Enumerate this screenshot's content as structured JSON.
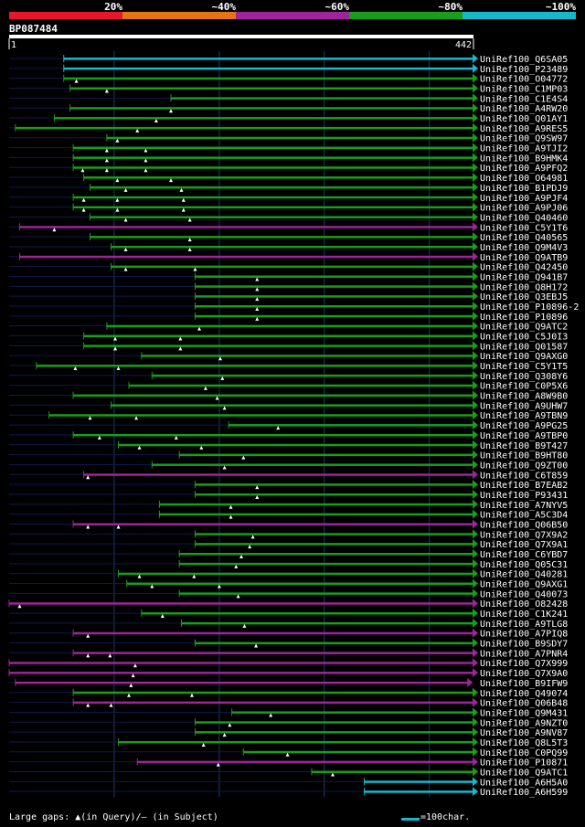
{
  "query": {
    "id": "BP087484",
    "start": "1",
    "end": "442",
    "length": 442
  },
  "legend_scale": [
    "20%",
    "~40%",
    "~60%",
    "~80%",
    "~100%"
  ],
  "colors": {
    "c20": "#e8162a",
    "c40": "#e8740f",
    "c60": "#a0239b",
    "c80": "#169f18",
    "c100": "#16b8cc",
    "dim": "#0e1850",
    "grid": "#1a3a6a"
  },
  "footer": {
    "gaps_text": "Large gaps: ▲(in Query)/– (in Subject)",
    "scale_text": "=100char."
  },
  "hits": [
    {
      "name": "UniRef100_Q6SA05",
      "s": 52,
      "e": 442,
      "c": "c100",
      "g": []
    },
    {
      "name": "UniRef100_P23489",
      "s": 52,
      "e": 442,
      "c": "c100",
      "g": []
    },
    {
      "name": "UniRef100_O04772",
      "s": 52,
      "e": 442,
      "c": "c80",
      "g": [
        64
      ]
    },
    {
      "name": "UniRef100_C1MP03",
      "s": 58,
      "e": 442,
      "c": "c80",
      "g": [
        93
      ]
    },
    {
      "name": "UniRef100_C1E4S4",
      "s": 154,
      "e": 442,
      "c": "c80",
      "g": []
    },
    {
      "name": "UniRef100_A4RW20",
      "s": 58,
      "e": 442,
      "c": "c80",
      "g": [
        154
      ]
    },
    {
      "name": "UniRef100_Q01AY1",
      "s": 43,
      "e": 442,
      "c": "c80",
      "g": [
        140
      ]
    },
    {
      "name": "UniRef100_A9RES5",
      "s": 6,
      "e": 442,
      "c": "c80",
      "g": [
        122
      ]
    },
    {
      "name": "UniRef100_Q9SW97",
      "s": 93,
      "e": 442,
      "c": "c80",
      "g": [
        103
      ]
    },
    {
      "name": "UniRef100_A9TJI2",
      "s": 61,
      "e": 442,
      "c": "c80",
      "g": [
        93,
        130
      ]
    },
    {
      "name": "UniRef100_B9HMK4",
      "s": 61,
      "e": 442,
      "c": "c80",
      "g": [
        93,
        130
      ]
    },
    {
      "name": "UniRef100_A9PFQ2",
      "s": 61,
      "e": 442,
      "c": "c80",
      "g": [
        70,
        93,
        130
      ]
    },
    {
      "name": "UniRef100_O64981",
      "s": 71,
      "e": 442,
      "c": "c80",
      "g": [
        103,
        154
      ]
    },
    {
      "name": "UniRef100_B1PDJ9",
      "s": 77,
      "e": 442,
      "c": "c80",
      "g": [
        111,
        164
      ]
    },
    {
      "name": "UniRef100_A9PJF4",
      "s": 61,
      "e": 442,
      "c": "c80",
      "g": [
        71,
        103,
        166
      ]
    },
    {
      "name": "UniRef100_A9PJ06",
      "s": 61,
      "e": 442,
      "c": "c80",
      "g": [
        71,
        103,
        166
      ]
    },
    {
      "name": "UniRef100_Q40460",
      "s": 77,
      "e": 442,
      "c": "c80",
      "g": [
        111,
        172
      ]
    },
    {
      "name": "UniRef100_C5Y1T6",
      "s": 10,
      "e": 442,
      "c": "c60",
      "g": [
        43
      ]
    },
    {
      "name": "UniRef100_Q40565",
      "s": 77,
      "e": 442,
      "c": "c80",
      "g": [
        172
      ]
    },
    {
      "name": "UniRef100_Q9M4V3",
      "s": 97,
      "e": 442,
      "c": "c80",
      "g": [
        111,
        172
      ]
    },
    {
      "name": "UniRef100_Q9ATB9",
      "s": 10,
      "e": 442,
      "c": "c60",
      "g": []
    },
    {
      "name": "UniRef100_Q42450",
      "s": 97,
      "e": 442,
      "c": "c80",
      "g": [
        111,
        177
      ]
    },
    {
      "name": "UniRef100_Q941B7",
      "s": 177,
      "e": 442,
      "c": "c80",
      "g": [
        236
      ]
    },
    {
      "name": "UniRef100_Q8H172",
      "s": 177,
      "e": 442,
      "c": "c80",
      "g": [
        236
      ]
    },
    {
      "name": "UniRef100_Q3EBJ5",
      "s": 177,
      "e": 442,
      "c": "c80",
      "g": [
        236
      ]
    },
    {
      "name": "UniRef100_P10896-2",
      "s": 177,
      "e": 442,
      "c": "c80",
      "g": [
        236
      ]
    },
    {
      "name": "UniRef100_P10896",
      "s": 177,
      "e": 442,
      "c": "c80",
      "g": [
        236
      ]
    },
    {
      "name": "UniRef100_Q9ATC2",
      "s": 93,
      "e": 442,
      "c": "c80",
      "g": [
        181
      ]
    },
    {
      "name": "UniRef100_C5J0I3",
      "s": 71,
      "e": 442,
      "c": "c80",
      "g": [
        101,
        163
      ]
    },
    {
      "name": "UniRef100_Q01587",
      "s": 71,
      "e": 442,
      "c": "c80",
      "g": [
        101,
        163
      ]
    },
    {
      "name": "UniRef100_Q9AXG0",
      "s": 126,
      "e": 442,
      "c": "c80",
      "g": [
        201
      ]
    },
    {
      "name": "UniRef100_C5Y1T5",
      "s": 26,
      "e": 442,
      "c": "c80",
      "g": [
        63,
        104
      ]
    },
    {
      "name": "UniRef100_Q308Y6",
      "s": 136,
      "e": 442,
      "c": "c80",
      "g": [
        203
      ]
    },
    {
      "name": "UniRef100_C0P5X6",
      "s": 114,
      "e": 442,
      "c": "c80",
      "g": [
        187
      ]
    },
    {
      "name": "UniRef100_A8W9B0",
      "s": 61,
      "e": 442,
      "c": "c80",
      "g": [
        198
      ]
    },
    {
      "name": "UniRef100_A9UHW7",
      "s": 97,
      "e": 442,
      "c": "c80",
      "g": [
        205
      ]
    },
    {
      "name": "UniRef100_A9TBN9",
      "s": 38,
      "e": 442,
      "c": "c80",
      "g": [
        77,
        121
      ]
    },
    {
      "name": "UniRef100_A9PG25",
      "s": 209,
      "e": 442,
      "c": "c80",
      "g": [
        256
      ]
    },
    {
      "name": "UniRef100_A9TBP0",
      "s": 61,
      "e": 442,
      "c": "c80",
      "g": [
        86,
        159
      ]
    },
    {
      "name": "UniRef100_B9T427",
      "s": 104,
      "e": 442,
      "c": "c80",
      "g": [
        124,
        183
      ]
    },
    {
      "name": "UniRef100_B9HT80",
      "s": 162,
      "e": 442,
      "c": "c80",
      "g": [
        223
      ]
    },
    {
      "name": "UniRef100_Q9ZT00",
      "s": 136,
      "e": 442,
      "c": "c80",
      "g": [
        205
      ]
    },
    {
      "name": "UniRef100_C6T859",
      "s": 71,
      "e": 442,
      "c": "c60",
      "g": [
        75
      ]
    },
    {
      "name": "UniRef100_B7EAB2",
      "s": 177,
      "e": 442,
      "c": "c80",
      "g": [
        236
      ]
    },
    {
      "name": "UniRef100_P93431",
      "s": 177,
      "e": 442,
      "c": "c80",
      "g": [
        236
      ]
    },
    {
      "name": "UniRef100_A7NYV5",
      "s": 143,
      "e": 442,
      "c": "c80",
      "g": [
        211
      ]
    },
    {
      "name": "UniRef100_A5C3D4",
      "s": 143,
      "e": 442,
      "c": "c80",
      "g": [
        211
      ]
    },
    {
      "name": "UniRef100_Q06B50",
      "s": 61,
      "e": 442,
      "c": "c60",
      "g": [
        75,
        104
      ]
    },
    {
      "name": "UniRef100_Q7X9A2",
      "s": 177,
      "e": 442,
      "c": "c80",
      "g": [
        232
      ]
    },
    {
      "name": "UniRef100_Q7X9A1",
      "s": 177,
      "e": 442,
      "c": "c80",
      "g": [
        229
      ]
    },
    {
      "name": "UniRef100_C6YBD7",
      "s": 162,
      "e": 442,
      "c": "c80",
      "g": [
        221
      ]
    },
    {
      "name": "UniRef100_Q05C31",
      "s": 162,
      "e": 442,
      "c": "c80",
      "g": [
        216
      ]
    },
    {
      "name": "UniRef100_Q40281",
      "s": 104,
      "e": 442,
      "c": "c80",
      "g": [
        124,
        176
      ]
    },
    {
      "name": "UniRef100_Q9AXG1",
      "s": 112,
      "e": 442,
      "c": "c80",
      "g": [
        136,
        200
      ]
    },
    {
      "name": "UniRef100_Q40073",
      "s": 162,
      "e": 442,
      "c": "c80",
      "g": [
        218
      ]
    },
    {
      "name": "UniRef100_O82428",
      "s": 0,
      "e": 442,
      "c": "c60",
      "g": [
        10
      ]
    },
    {
      "name": "UniRef100_C1K241",
      "s": 126,
      "e": 442,
      "c": "c80",
      "g": [
        146
      ]
    },
    {
      "name": "UniRef100_A9TLG8",
      "s": 164,
      "e": 442,
      "c": "c80",
      "g": [
        224
      ]
    },
    {
      "name": "UniRef100_A7PIQ8",
      "s": 61,
      "e": 442,
      "c": "c60",
      "g": [
        75
      ]
    },
    {
      "name": "UniRef100_B9SDY7",
      "s": 177,
      "e": 442,
      "c": "c80",
      "g": [
        235
      ]
    },
    {
      "name": "UniRef100_A7PNR4",
      "s": 61,
      "e": 442,
      "c": "c60",
      "g": [
        75,
        96
      ]
    },
    {
      "name": "UniRef100_Q7X999",
      "s": 0,
      "e": 442,
      "c": "c60",
      "g": [
        120
      ]
    },
    {
      "name": "UniRef100_Q7X9A0",
      "s": 0,
      "e": 442,
      "c": "c60",
      "g": [
        118
      ]
    },
    {
      "name": "UniRef100_B9IFW9",
      "s": 6,
      "e": 437,
      "c": "c60",
      "g": [
        116
      ]
    },
    {
      "name": "UniRef100_Q49074",
      "s": 61,
      "e": 442,
      "c": "c80",
      "g": [
        114,
        174
      ]
    },
    {
      "name": "UniRef100_Q06B48",
      "s": 61,
      "e": 442,
      "c": "c60",
      "g": [
        75,
        97
      ]
    },
    {
      "name": "UniRef100_Q9M431",
      "s": 212,
      "e": 442,
      "c": "c80",
      "g": [
        249
      ]
    },
    {
      "name": "UniRef100_A9NZT0",
      "s": 177,
      "e": 442,
      "c": "c80",
      "g": [
        210
      ]
    },
    {
      "name": "UniRef100_A9NV87",
      "s": 177,
      "e": 442,
      "c": "c80",
      "g": [
        205
      ]
    },
    {
      "name": "UniRef100_Q8L5T3",
      "s": 104,
      "e": 442,
      "c": "c80",
      "g": [
        185
      ]
    },
    {
      "name": "UniRef100_C0PQ99",
      "s": 223,
      "e": 442,
      "c": "c80",
      "g": [
        265
      ]
    },
    {
      "name": "UniRef100_P10871",
      "s": 122,
      "e": 442,
      "c": "c60",
      "g": [
        199
      ]
    },
    {
      "name": "UniRef100_Q9ATC1",
      "s": 288,
      "e": 442,
      "c": "c80",
      "g": [
        308
      ]
    },
    {
      "name": "UniRef100_A6H5A0",
      "s": 338,
      "e": 442,
      "c": "c100",
      "g": []
    },
    {
      "name": "UniRef100_A6H599",
      "s": 338,
      "e": 442,
      "c": "c100",
      "g": []
    }
  ]
}
